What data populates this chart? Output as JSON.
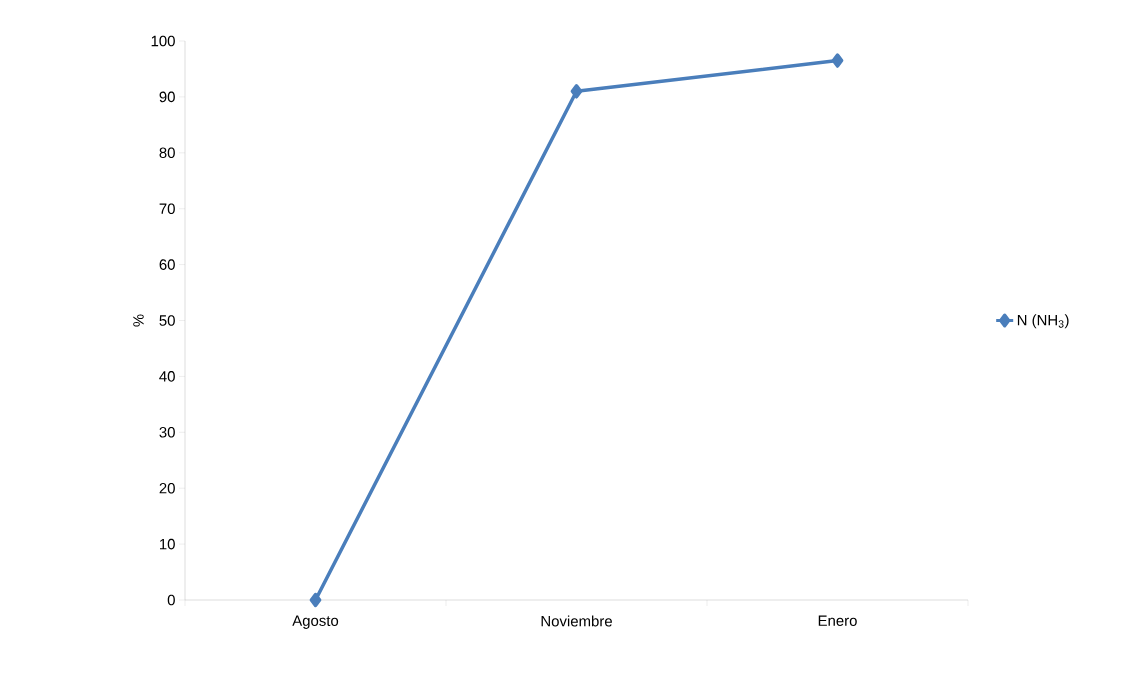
{
  "chart_data": {
    "type": "line",
    "ylabel": "%",
    "categories": [
      "Agosto",
      "Noviembre",
      "Enero"
    ],
    "series": [
      {
        "name": "N (NH$_{3}$)",
        "color": "#4a7ebb",
        "values": [
          0,
          91,
          96.5
        ]
      }
    ],
    "ylim": [
      0,
      100
    ],
    "yticks": [
      0,
      10,
      20,
      30,
      40,
      50,
      60,
      70,
      80,
      90,
      100
    ],
    "grid": false,
    "legend": "right",
    "marker": "diamond",
    "line_style": "solid"
  }
}
